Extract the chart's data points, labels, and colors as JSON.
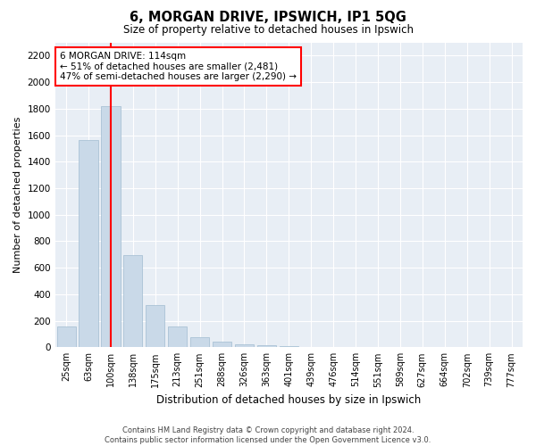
{
  "title": "6, MORGAN DRIVE, IPSWICH, IP1 5QG",
  "subtitle": "Size of property relative to detached houses in Ipswich",
  "xlabel": "Distribution of detached houses by size in Ipswich",
  "ylabel": "Number of detached properties",
  "categories": [
    "25sqm",
    "63sqm",
    "100sqm",
    "138sqm",
    "175sqm",
    "213sqm",
    "251sqm",
    "288sqm",
    "326sqm",
    "363sqm",
    "401sqm",
    "439sqm",
    "476sqm",
    "514sqm",
    "551sqm",
    "589sqm",
    "627sqm",
    "664sqm",
    "702sqm",
    "739sqm",
    "777sqm"
  ],
  "values": [
    155,
    1560,
    1820,
    695,
    320,
    160,
    75,
    45,
    25,
    15,
    10,
    5,
    3,
    0,
    0,
    0,
    0,
    0,
    0,
    0,
    0
  ],
  "bar_color": "#c9d9e8",
  "bar_edge_color": "#a0bcd0",
  "redline_index": 2,
  "annotation_text": "6 MORGAN DRIVE: 114sqm\n← 51% of detached houses are smaller (2,481)\n47% of semi-detached houses are larger (2,290) →",
  "annotation_box_color": "white",
  "annotation_box_edge_color": "red",
  "redline_color": "red",
  "ylim": [
    0,
    2300
  ],
  "yticks": [
    0,
    200,
    400,
    600,
    800,
    1000,
    1200,
    1400,
    1600,
    1800,
    2000,
    2200
  ],
  "footer_line1": "Contains HM Land Registry data © Crown copyright and database right 2024.",
  "footer_line2": "Contains public sector information licensed under the Open Government Licence v3.0.",
  "plot_bg_color": "#e8eef5"
}
